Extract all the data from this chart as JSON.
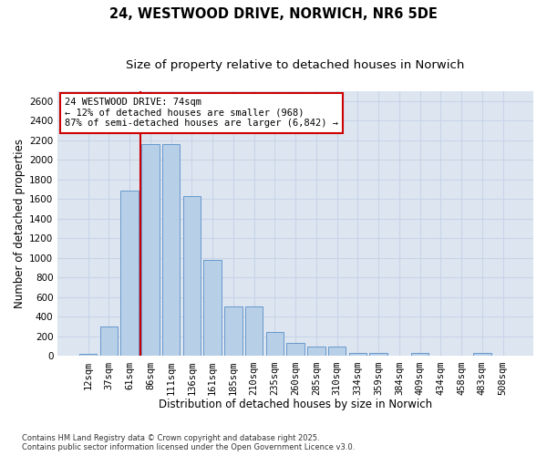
{
  "title_line1": "24, WESTWOOD DRIVE, NORWICH, NR6 5DE",
  "title_line2": "Size of property relative to detached houses in Norwich",
  "xlabel": "Distribution of detached houses by size in Norwich",
  "ylabel": "Number of detached properties",
  "categories": [
    "12sqm",
    "37sqm",
    "61sqm",
    "86sqm",
    "111sqm",
    "136sqm",
    "161sqm",
    "185sqm",
    "210sqm",
    "235sqm",
    "260sqm",
    "285sqm",
    "310sqm",
    "334sqm",
    "359sqm",
    "384sqm",
    "409sqm",
    "434sqm",
    "458sqm",
    "483sqm",
    "508sqm"
  ],
  "values": [
    25,
    300,
    1690,
    2160,
    2160,
    1630,
    980,
    510,
    510,
    250,
    135,
    100,
    100,
    30,
    30,
    0,
    30,
    0,
    0,
    30,
    0
  ],
  "bar_color": "#b8cfe8",
  "bar_edgecolor": "#6699cc",
  "vline_x_index": 2.5,
  "vline_color": "#cc0000",
  "annotation_text": "24 WESTWOOD DRIVE: 74sqm\n← 12% of detached houses are smaller (968)\n87% of semi-detached houses are larger (6,842) →",
  "annotation_box_color": "#cc0000",
  "ylim_max": 2700,
  "yticks": [
    0,
    200,
    400,
    600,
    800,
    1000,
    1200,
    1400,
    1600,
    1800,
    2000,
    2200,
    2400,
    2600
  ],
  "grid_color": "#c8d4e8",
  "background_color": "#dde5f0",
  "footer_text": "Contains HM Land Registry data © Crown copyright and database right 2025.\nContains public sector information licensed under the Open Government Licence v3.0.",
  "title_fontsize": 10.5,
  "subtitle_fontsize": 9.5,
  "axis_label_fontsize": 8.5,
  "tick_fontsize": 7.5,
  "annotation_fontsize": 7.5
}
